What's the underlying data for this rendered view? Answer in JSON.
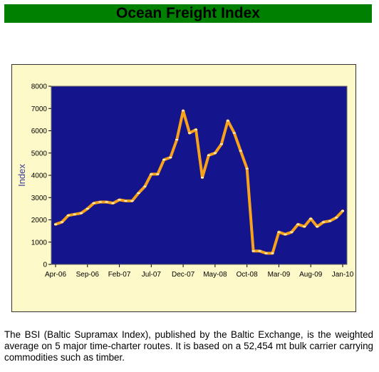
{
  "header": {
    "title": "Ocean Freight Index",
    "color": "#008000"
  },
  "caption": "The BSI (Baltic Supramax Index), published by the Baltic Exchange, is the weighted average on 5 major time-charter routes. It is based on a 52,454 mt bulk carrier carrying commodities such as timber.",
  "colors": {
    "plot_background": "#14148c",
    "frame_background": "#fdf9c8",
    "line": "#f7a21a",
    "axis_label": "#3c3c9a"
  },
  "chart_data": {
    "type": "line",
    "title": "",
    "xlabel": "",
    "ylabel": "Index",
    "ylim": [
      0,
      8000
    ],
    "y_ticks": [
      0,
      1000,
      2000,
      3000,
      4000,
      5000,
      6000,
      7000,
      8000
    ],
    "x_tick_labels": [
      "Apr-06",
      "Sep-06",
      "Feb-07",
      "Jul-07",
      "Dec-07",
      "May-08",
      "Oct-08",
      "Mar-09",
      "Aug-09",
      "Jan-10"
    ],
    "x": [
      "Apr-06",
      "May-06",
      "Jun-06",
      "Jul-06",
      "Aug-06",
      "Sep-06",
      "Oct-06",
      "Nov-06",
      "Dec-06",
      "Jan-07",
      "Feb-07",
      "Mar-07",
      "Apr-07",
      "May-07",
      "Jun-07",
      "Jul-07",
      "Aug-07",
      "Sep-07",
      "Oct-07",
      "Nov-07",
      "Dec-07",
      "Jan-08",
      "Feb-08",
      "Mar-08",
      "Apr-08",
      "May-08",
      "Jun-08",
      "Jul-08",
      "Aug-08",
      "Sep-08",
      "Oct-08",
      "Nov-08",
      "Dec-08",
      "Jan-09",
      "Feb-09",
      "Mar-09",
      "Apr-09",
      "May-09",
      "Jun-09",
      "Jul-09",
      "Aug-09",
      "Sep-09",
      "Oct-09",
      "Nov-09",
      "Dec-09",
      "Jan-10"
    ],
    "values": [
      1800,
      1900,
      2200,
      2250,
      2300,
      2500,
      2750,
      2800,
      2800,
      2750,
      2900,
      2850,
      2850,
      3200,
      3500,
      4050,
      4050,
      4700,
      4800,
      5600,
      6900,
      5900,
      6050,
      3900,
      4900,
      5000,
      5400,
      6450,
      5900,
      5100,
      4300,
      600,
      600,
      500,
      500,
      1450,
      1350,
      1450,
      1800,
      1700,
      2050,
      1700,
      1900,
      1950,
      2100,
      2400
    ],
    "grid": false,
    "legend": "none"
  }
}
